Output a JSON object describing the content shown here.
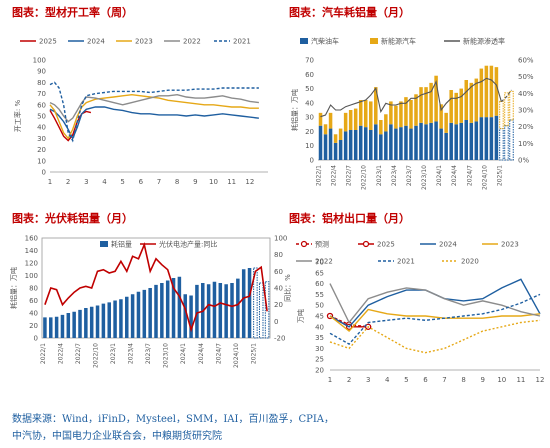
{
  "source": {
    "line1": "数据来源：Wind，iFinD，Mysteel，SMM，IAI，百川盈孚，CPIA，",
    "line2": "中汽协，中国电力企业联合会，中粮期货研究院"
  },
  "chart_data": [
    {
      "type": "line",
      "title": "图表：型材开工率（周）",
      "ylabel": "开工率: %",
      "ylim": [
        0,
        100
      ],
      "yticks": [
        0,
        10,
        20,
        30,
        40,
        50,
        60,
        70,
        80,
        90,
        100
      ],
      "xticks": [
        "1",
        "2",
        "3",
        "4",
        "5",
        "6",
        "7",
        "8",
        "9",
        "10",
        "11",
        "12"
      ],
      "xlim": [
        1,
        13
      ],
      "series": [
        {
          "name": "2025",
          "color": "#c00000",
          "dash": "",
          "x": [
            1,
            1.25,
            1.5,
            1.75,
            2,
            2.25,
            2.5,
            2.75,
            3,
            3.25
          ],
          "values": [
            55,
            48,
            40,
            32,
            28,
            33,
            45,
            52,
            54,
            53
          ]
        },
        {
          "name": "2024",
          "color": "#1f5fa0",
          "dash": "",
          "x": [
            1,
            1.25,
            1.5,
            1.75,
            2,
            2.25,
            2.5,
            2.75,
            3,
            3.5,
            4,
            4.5,
            5,
            5.5,
            6,
            6.5,
            7,
            7.5,
            8,
            8.5,
            9,
            9.5,
            10,
            10.5,
            11,
            11.5,
            12,
            12.5
          ],
          "values": [
            56,
            54,
            50,
            45,
            38,
            30,
            40,
            52,
            56,
            58,
            58,
            56,
            55,
            53,
            52,
            52,
            51,
            51,
            51,
            50,
            51,
            50,
            51,
            52,
            51,
            50,
            49,
            48
          ]
        },
        {
          "name": "2023",
          "color": "#e6a817",
          "dash": "",
          "x": [
            1,
            1.25,
            1.5,
            1.75,
            2,
            2.25,
            2.5,
            2.75,
            3,
            3.5,
            4,
            4.5,
            5,
            5.5,
            6,
            6.5,
            7,
            7.5,
            8,
            8.5,
            9,
            9.5,
            10,
            10.5,
            11,
            11.5,
            12,
            12.5
          ],
          "values": [
            60,
            55,
            45,
            35,
            30,
            38,
            50,
            58,
            62,
            65,
            66,
            67,
            68,
            69,
            68,
            67,
            66,
            64,
            63,
            62,
            61,
            60,
            60,
            59,
            58,
            58,
            57,
            57
          ]
        },
        {
          "name": "2022",
          "color": "#8c8c8c",
          "dash": "",
          "x": [
            1,
            1.25,
            1.5,
            1.75,
            2,
            2.25,
            2.5,
            2.75,
            3,
            3.5,
            4,
            4.5,
            5,
            5.5,
            6,
            6.5,
            7,
            7.5,
            8,
            8.5,
            9,
            9.5,
            10,
            10.5,
            11,
            11.5,
            12,
            12.5
          ],
          "values": [
            62,
            60,
            56,
            50,
            45,
            48,
            55,
            62,
            67,
            66,
            64,
            62,
            60,
            62,
            64,
            66,
            68,
            68,
            69,
            67,
            66,
            66,
            67,
            68,
            66,
            65,
            63,
            62
          ]
        },
        {
          "name": "2021",
          "color": "#1f5fa0",
          "dash": "3,2",
          "x": [
            1,
            1.25,
            1.5,
            1.75,
            2,
            2.25,
            2.5,
            2.75,
            3,
            3.5,
            4,
            4.5,
            5,
            5.5,
            6,
            6.5,
            7,
            7.5,
            8,
            8.5,
            9,
            9.5,
            10,
            10.5,
            11,
            11.5,
            12,
            12.5
          ],
          "values": [
            78,
            80,
            75,
            60,
            35,
            28,
            45,
            60,
            68,
            70,
            71,
            72,
            72,
            72,
            72,
            71,
            72,
            73,
            73,
            73,
            74,
            74,
            74,
            75,
            75,
            75,
            75,
            75
          ]
        }
      ]
    },
    {
      "type": "bar",
      "title": "图表：汽车耗铝量（月）",
      "ylabel": "耗铝量：万吨",
      "ylim": [
        0,
        70
      ],
      "yticks": [
        0,
        10,
        20,
        30,
        40,
        50,
        60,
        70
      ],
      "y2lim": [
        0,
        60
      ],
      "y2ticks": [
        "0%",
        "10%",
        "20%",
        "30%",
        "40%",
        "50%",
        "60%"
      ],
      "categories": [
        "2022/1",
        "2022/2",
        "2022/3",
        "2022/4",
        "2022/5",
        "2022/6",
        "2022/7",
        "2022/8",
        "2022/9",
        "2022/10",
        "2022/11",
        "2022/12",
        "2023/1",
        "2023/2",
        "2023/3",
        "2023/4",
        "2023/5",
        "2023/6",
        "2023/7",
        "2023/8",
        "2023/9",
        "2023/10",
        "2023/11",
        "2023/12",
        "2024/1",
        "2024/2",
        "2024/3",
        "2024/4",
        "2024/5",
        "2024/6",
        "2024/7",
        "2024/8",
        "2024/9",
        "2024/10",
        "2024/11",
        "2024/12",
        "2025/1",
        "2025/2",
        "2025/3"
      ],
      "xticks": [
        "2022/1",
        "2022/4",
        "2022/7",
        "2022/10",
        "2023/1",
        "2023/4",
        "2023/7",
        "2023/10",
        "2024/1",
        "2024/4",
        "2024/7",
        "2024/10",
        "2025/1"
      ],
      "series": [
        {
          "name": "汽柴油车",
          "color": "#1f5fa0",
          "values": [
            24,
            18,
            22,
            12,
            14,
            20,
            21,
            21,
            24,
            23,
            21,
            25,
            18,
            20,
            25,
            22,
            23,
            24,
            22,
            24,
            26,
            25,
            26,
            27,
            22,
            19,
            26,
            25,
            26,
            28,
            26,
            27,
            30,
            30,
            30,
            31,
            22,
            24,
            28
          ]
        },
        {
          "name": "新能源汽车",
          "color": "#e6a817",
          "values": [
            9,
            7,
            11,
            6,
            8,
            13,
            14,
            15,
            18,
            19,
            20,
            26,
            10,
            12,
            16,
            16,
            18,
            20,
            20,
            22,
            25,
            26,
            28,
            32,
            17,
            14,
            23,
            22,
            24,
            28,
            28,
            30,
            34,
            36,
            36,
            34,
            19,
            23,
            20
          ]
        },
        {
          "name": "新能源渗透率",
          "color": "#555555",
          "axis": "right",
          "values": [
            26,
            27,
            33,
            30,
            30,
            32,
            33,
            34,
            35,
            36,
            39,
            43,
            29,
            34,
            33,
            33,
            34,
            34,
            37,
            37,
            39,
            40,
            41,
            47,
            30,
            34,
            37,
            37,
            38,
            41,
            44,
            46,
            47,
            49,
            48,
            45,
            35,
            38,
            42
          ]
        }
      ],
      "forecast_start": "2025/1"
    },
    {
      "type": "bar",
      "title": "图表：光伏耗铝量（月）",
      "ylabel": "耗铝量：万吨",
      "y2label": "同比：%",
      "ylim": [
        0,
        160
      ],
      "yticks": [
        0,
        20,
        40,
        60,
        80,
        100,
        120,
        140,
        160
      ],
      "y2lim": [
        -20,
        100
      ],
      "y2ticks": [
        -20,
        0,
        20,
        40,
        60,
        80,
        100
      ],
      "categories": [
        "2022/1",
        "2022/2",
        "2022/3",
        "2022/4",
        "2022/5",
        "2022/6",
        "2022/7",
        "2022/8",
        "2022/9",
        "2022/10",
        "2022/11",
        "2022/12",
        "2023/1",
        "2023/2",
        "2023/3",
        "2023/4",
        "2023/5",
        "2023/6",
        "2023/7",
        "2023/8",
        "2023/9",
        "2023/10",
        "2023/11",
        "2023/12",
        "2024/1",
        "2024/2",
        "2024/3",
        "2024/4",
        "2024/5",
        "2024/6",
        "2024/7",
        "2024/8",
        "2024/9",
        "2024/10",
        "2024/11",
        "2024/12",
        "2025/1",
        "2025/2",
        "2025/3"
      ],
      "xticks": [
        "2022/1",
        "2022/4",
        "2022/7",
        "2022/10",
        "2023/1",
        "2023/4",
        "2023/7",
        "2023/10",
        "2024/1",
        "2024/4",
        "2024/7",
        "2024/10",
        "2025/1"
      ],
      "series": [
        {
          "name": "耗铝量",
          "color": "#1f5fa0",
          "values": [
            33,
            33,
            34,
            37,
            40,
            42,
            45,
            48,
            50,
            52,
            55,
            57,
            60,
            62,
            66,
            70,
            74,
            77,
            80,
            85,
            88,
            92,
            96,
            98,
            70,
            68,
            85,
            88,
            86,
            90,
            88,
            86,
            88,
            95,
            110,
            112,
            112,
            88,
            90
          ]
        },
        {
          "name": "光伏电池产量:同比",
          "color": "#c00000",
          "axis": "right",
          "values": [
            20,
            40,
            38,
            20,
            28,
            35,
            40,
            42,
            40,
            60,
            62,
            58,
            60,
            72,
            60,
            78,
            75,
            92,
            60,
            75,
            68,
            62,
            40,
            30,
            15,
            -10,
            10,
            12,
            20,
            18,
            22,
            20,
            18,
            20,
            28,
            30,
            60,
            65,
            12
          ]
        }
      ],
      "forecast_start": "2025/1"
    },
    {
      "type": "line",
      "title": "图表：铝材出口量（月）",
      "ylabel": "万吨",
      "ylim": [
        20,
        70
      ],
      "yticks": [
        20,
        25,
        30,
        35,
        40,
        45,
        50,
        55,
        60,
        65,
        70
      ],
      "xticks": [
        "1",
        "2",
        "3",
        "4",
        "5",
        "6",
        "7",
        "8",
        "9",
        "10",
        "11",
        "12"
      ],
      "series": [
        {
          "name": "预测",
          "color": "#c00000",
          "dash": "3,2",
          "marker": "circle",
          "x": [
            1,
            2,
            3
          ],
          "values": [
            45,
            41,
            40
          ]
        },
        {
          "name": "2025",
          "color": "#c00000",
          "dash": "",
          "marker": "circle",
          "x": [
            1,
            2,
            3
          ],
          "values": [
            45,
            40,
            40
          ]
        },
        {
          "name": "2024",
          "color": "#1f5fa0",
          "dash": "",
          "x": [
            1,
            2,
            3,
            4,
            5,
            6,
            7,
            8,
            9,
            10,
            11,
            12
          ],
          "values": [
            45,
            40,
            50,
            54,
            57,
            57,
            53,
            52,
            53,
            58,
            62,
            46
          ]
        },
        {
          "name": "2023",
          "color": "#e6a817",
          "dash": "",
          "x": [
            1,
            2,
            3,
            4,
            5,
            6,
            7,
            8,
            9,
            10,
            11,
            12
          ],
          "values": [
            45,
            38,
            48,
            46,
            45,
            45,
            44,
            44,
            44,
            45,
            45,
            46
          ]
        },
        {
          "name": "2022",
          "color": "#8c8c8c",
          "dash": "",
          "x": [
            1,
            2,
            3,
            4,
            5,
            6,
            7,
            8,
            9,
            10,
            11,
            12
          ],
          "values": [
            60,
            42,
            53,
            56,
            58,
            57,
            53,
            50,
            52,
            50,
            47,
            45
          ]
        },
        {
          "name": "2021",
          "color": "#1f5fa0",
          "dash": "3,2",
          "x": [
            1,
            2,
            3,
            4,
            5,
            6,
            7,
            8,
            9,
            10,
            11,
            12
          ],
          "values": [
            37,
            32,
            42,
            43,
            44,
            43,
            44,
            45,
            46,
            48,
            51,
            55
          ]
        },
        {
          "name": "2020",
          "color": "#e6a817",
          "dash": "2,2",
          "x": [
            1,
            2,
            3,
            4,
            5,
            6,
            7,
            8,
            9,
            10,
            11,
            12
          ],
          "values": [
            33,
            30,
            40,
            35,
            30,
            28,
            30,
            34,
            38,
            40,
            42,
            43
          ]
        }
      ]
    }
  ]
}
